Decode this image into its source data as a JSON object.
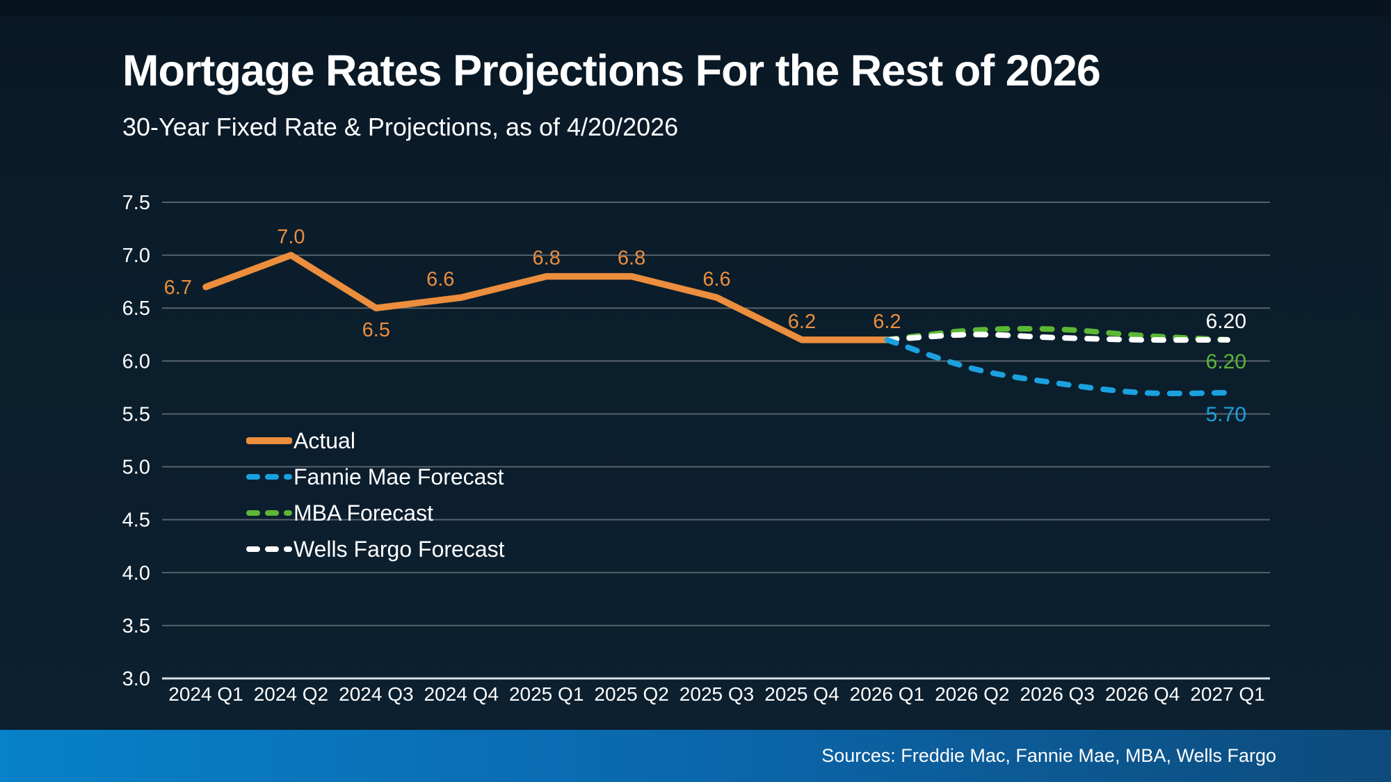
{
  "header": {
    "title": "Mortgage Rates Projections For the Rest of 2026",
    "subtitle": "30-Year Fixed Rate & Projections, as of 4/20/2026"
  },
  "footer": {
    "sources": "Sources: Freddie Mac, Fannie Mae, MBA, Wells Fargo"
  },
  "colors": {
    "background": "#0b1d2b",
    "top_strip": "#071420",
    "gridline": "#56636c",
    "axis_line": "#d9e2e8",
    "tick_text": "#ffffff",
    "accent_orange": "#ec8e3d",
    "accent_blue": "#1ba1df",
    "accent_green": "#5bb734",
    "accent_white": "#ffffff",
    "footer_bar_left": "#0781c9",
    "footer_bar_right": "#0d4b7c"
  },
  "chart_data": {
    "type": "line",
    "title": "Mortgage Rates Projections For the Rest of 2026",
    "subtitle": "30-Year Fixed Rate & Projections, as of 4/20/2026",
    "categories": [
      "2024 Q1",
      "2024 Q2",
      "2024 Q3",
      "2024 Q4",
      "2025 Q1",
      "2025 Q2",
      "2025 Q3",
      "2025 Q4",
      "2026 Q1",
      "2026 Q2",
      "2026 Q3",
      "2026 Q4",
      "2027 Q1"
    ],
    "y_axis": {
      "min": 3.0,
      "max": 7.5,
      "step": 0.5,
      "tick_labels": [
        "7.5",
        "7.0",
        "6.5",
        "6.0",
        "5.5",
        "5.0",
        "4.5",
        "4.0",
        "3.5",
        "3.0"
      ]
    },
    "grid": true,
    "legend_position": "inside-left",
    "series": [
      {
        "name": "Actual",
        "color": "#ec8e3d",
        "dash": "solid",
        "z": 1,
        "start_index": 0,
        "values": [
          6.7,
          7.0,
          6.5,
          6.6,
          6.8,
          6.8,
          6.6,
          6.2,
          6.2
        ],
        "point_labels": [
          {
            "text": "6.7",
            "placement": "left"
          },
          {
            "text": "7.0",
            "placement": "above"
          },
          {
            "text": "6.5",
            "placement": "below"
          },
          {
            "text": "6.6",
            "placement": "above",
            "dx": -30
          },
          {
            "text": "6.8",
            "placement": "above"
          },
          {
            "text": "6.8",
            "placement": "above"
          },
          {
            "text": "6.6",
            "placement": "above"
          },
          {
            "text": "6.2",
            "placement": "above"
          },
          {
            "text": "6.2",
            "placement": "above"
          }
        ]
      },
      {
        "name": "Fannie Mae Forecast",
        "color": "#1ba1df",
        "dash": "dashed",
        "z": 4,
        "start_index": 8,
        "values": [
          6.2,
          5.93,
          5.79,
          5.7,
          5.7
        ],
        "end_label": {
          "text": "5.70",
          "placement": "below"
        }
      },
      {
        "name": "MBA Forecast",
        "color": "#5bb734",
        "dash": "dashed",
        "z": 2,
        "start_index": 8,
        "values": [
          6.2,
          6.29,
          6.3,
          6.24,
          6.2
        ],
        "end_label": {
          "text": "6.20",
          "placement": "below"
        }
      },
      {
        "name": "Wells Fargo Forecast",
        "color": "#ffffff",
        "dash": "dashed",
        "z": 3,
        "start_index": 8,
        "values": [
          6.2,
          6.25,
          6.22,
          6.2,
          6.2
        ],
        "end_label": {
          "text": "6.20",
          "placement": "above"
        }
      }
    ]
  }
}
